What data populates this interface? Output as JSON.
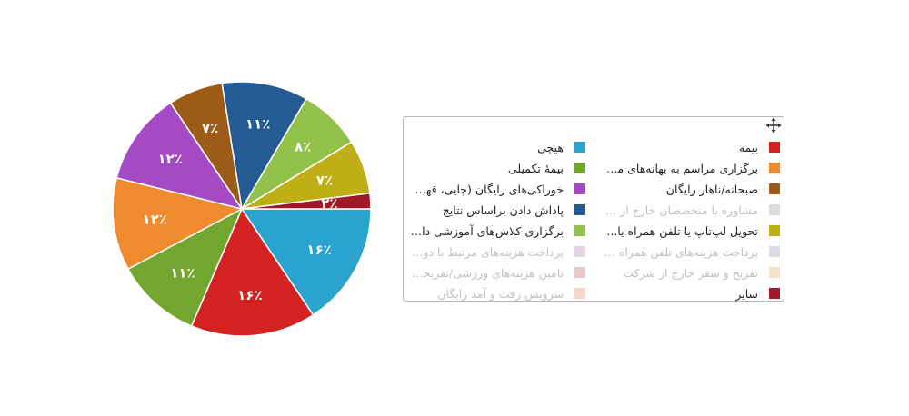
{
  "chart_data": {
    "type": "pie",
    "slices": [
      {
        "label": "هیچی",
        "value": 16,
        "display": "۱۶٪",
        "color": "#2aa3cf"
      },
      {
        "label": "بیمه",
        "value": 16,
        "display": "۱۶٪",
        "color": "#d42222"
      },
      {
        "label": "بیمهٔ تکمیلی",
        "value": 11,
        "display": "۱۱٪",
        "color": "#73a62e"
      },
      {
        "label": "برگزاری مراسم به بهانه‌های مخت...",
        "value": 12,
        "display": "۱۲٪",
        "color": "#ef8a2e"
      },
      {
        "label": "خوراکی‌های رایگان (چایی، قهوه،...",
        "value": 12,
        "display": "۱۲٪",
        "color": "#a44ac4"
      },
      {
        "label": "صبحانه/ناهار رایگان",
        "value": 7,
        "display": "۷٪",
        "color": "#9c5c18"
      },
      {
        "label": "پاداش دادن براساس نتایج",
        "value": 11,
        "display": "۱۱٪",
        "color": "#245b93"
      },
      {
        "label": "برگزاری کلاس‌های آموزشی داخل/خ...",
        "value": 8,
        "display": "۸٪",
        "color": "#93c24a"
      },
      {
        "label": "تحویل لپ‌تاپ یا تلفن همراه یا...",
        "value": 7,
        "display": "۷٪",
        "color": "#bfae15"
      },
      {
        "label": "سایر",
        "value": 2,
        "display": "۲٪",
        "color": "#a0192b"
      }
    ]
  },
  "legend": {
    "items": [
      {
        "label": "بیمه",
        "color": "#d42222",
        "muted": false
      },
      {
        "label": "هیچی",
        "color": "#2aa3cf",
        "muted": false
      },
      {
        "label": "برگزاری مراسم به بهانه‌های مخت...",
        "color": "#ef8a2e",
        "muted": false
      },
      {
        "label": "بیمهٔ تکمیلی",
        "color": "#73a62e",
        "muted": false
      },
      {
        "label": "صبحانه/ناهار رایگان",
        "color": "#9c5c18",
        "muted": false
      },
      {
        "label": "خوراکی‌های رایگان (چایی، قهوه،...",
        "color": "#a44ac4",
        "muted": false
      },
      {
        "label": "مشاوره با متخصصان خارج از شرکت",
        "color": "#dcdcdc",
        "muted": true
      },
      {
        "label": "پاداش دادن براساس نتایج",
        "color": "#245b93",
        "muted": false
      },
      {
        "label": "تحویل لپ‌تاپ یا تلفن همراه یا...",
        "color": "#bfae15",
        "muted": false
      },
      {
        "label": "برگزاری کلاس‌های آموزشی داخل/خ...",
        "color": "#93c24a",
        "muted": false
      },
      {
        "label": "پرداخت هزینه‌های تلفن همراه (ت...",
        "color": "#dcdce4",
        "muted": true
      },
      {
        "label": "پرداخت هزینه‌های مرتبط با دورک...",
        "color": "#e2d4e0",
        "muted": true
      },
      {
        "label": "تفریح و سفر خارج از شرکت",
        "color": "#f2e2c8",
        "muted": true
      },
      {
        "label": "تامین هزینه‌های ورزشی/تفریحی (...",
        "color": "#e7c8cc",
        "muted": true
      },
      {
        "label": "سایر",
        "color": "#a0192b",
        "muted": false
      },
      {
        "label": "سرویس رفت و آمد رایگان",
        "color": "#f7d6c8",
        "muted": true
      }
    ]
  },
  "icons": {
    "move": "move-arrows-icon"
  }
}
